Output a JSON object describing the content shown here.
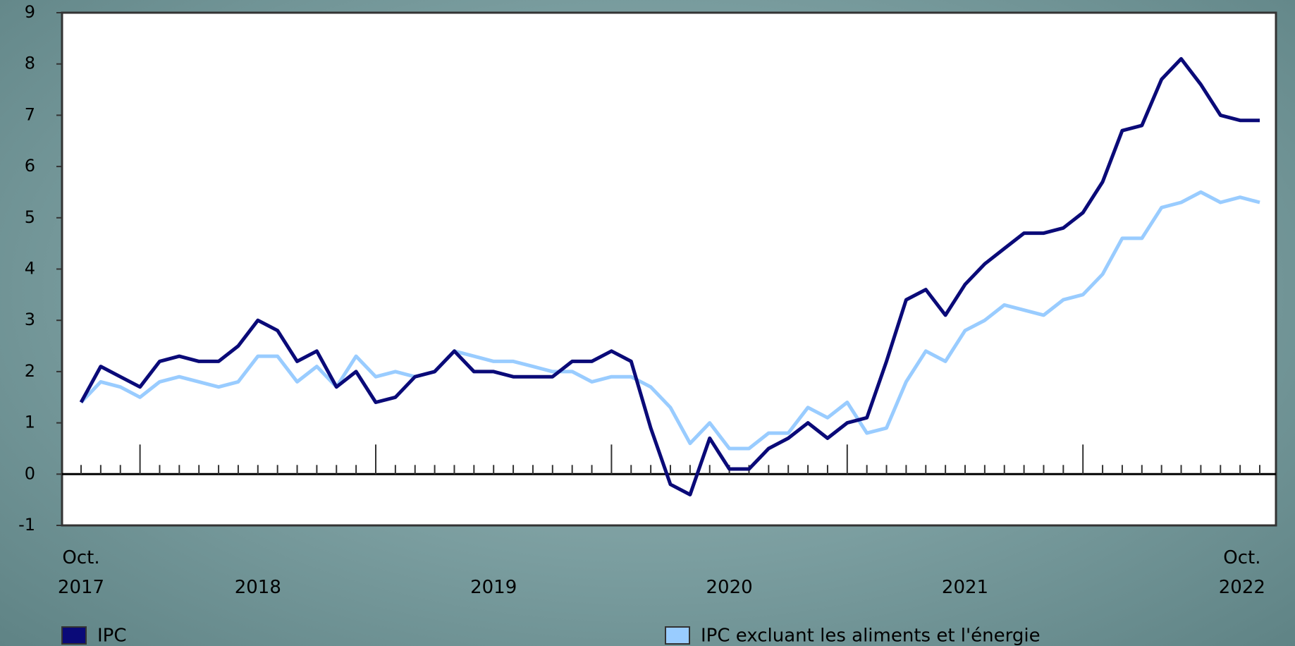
{
  "chart_data": {
    "type": "line",
    "categories": [
      "Oct.\n2017",
      null,
      null,
      null,
      null,
      null,
      null,
      null,
      null,
      "2018",
      null,
      null,
      null,
      null,
      null,
      null,
      null,
      null,
      null,
      null,
      null,
      "2019",
      null,
      null,
      null,
      null,
      null,
      null,
      null,
      null,
      null,
      null,
      null,
      "2020",
      null,
      null,
      null,
      null,
      null,
      null,
      null,
      null,
      null,
      null,
      null,
      "2021",
      null,
      null,
      null,
      null,
      null,
      null,
      null,
      null,
      null,
      null,
      null,
      null,
      null,
      null,
      "Oct.\n2022"
    ],
    "series": [
      {
        "name": "IPC",
        "color": "#0a0a78",
        "values": [
          1.4,
          2.1,
          1.9,
          1.7,
          2.2,
          2.3,
          2.2,
          2.2,
          2.5,
          3.0,
          2.8,
          2.2,
          2.4,
          1.7,
          2.0,
          1.4,
          1.5,
          1.9,
          2.0,
          2.4,
          2.0,
          2.0,
          1.9,
          1.9,
          1.9,
          2.2,
          2.2,
          2.4,
          2.2,
          0.9,
          -0.2,
          -0.4,
          0.7,
          0.1,
          0.1,
          0.5,
          0.7,
          1.0,
          0.7,
          1.0,
          1.1,
          2.2,
          3.4,
          3.6,
          3.1,
          3.7,
          4.1,
          4.4,
          4.7,
          4.7,
          4.8,
          5.1,
          5.7,
          6.7,
          6.8,
          7.7,
          8.1,
          7.6,
          7.0,
          6.9,
          6.9
        ]
      },
      {
        "name": "IPC excluant les aliments et l'énergie",
        "color": "#99ccff",
        "values": [
          1.4,
          1.8,
          1.7,
          1.5,
          1.8,
          1.9,
          1.8,
          1.7,
          1.8,
          2.3,
          2.3,
          1.8,
          2.1,
          1.7,
          2.3,
          1.9,
          2.0,
          1.9,
          2.0,
          2.4,
          2.3,
          2.2,
          2.2,
          2.1,
          2.0,
          2.0,
          1.8,
          1.9,
          1.9,
          1.7,
          1.3,
          0.6,
          1.0,
          0.5,
          0.5,
          0.8,
          0.8,
          1.3,
          1.1,
          1.4,
          0.8,
          0.9,
          1.8,
          2.4,
          2.2,
          2.8,
          3.0,
          3.3,
          3.2,
          3.1,
          3.4,
          3.5,
          3.9,
          4.6,
          4.6,
          5.2,
          5.3,
          5.5,
          5.3,
          5.4,
          5.3
        ]
      }
    ],
    "ylim": [
      -1,
      9
    ],
    "yticks": [
      -1,
      0,
      1,
      2,
      3,
      4,
      5,
      6,
      7,
      8,
      9
    ],
    "grid": false,
    "legend": "bottom"
  }
}
